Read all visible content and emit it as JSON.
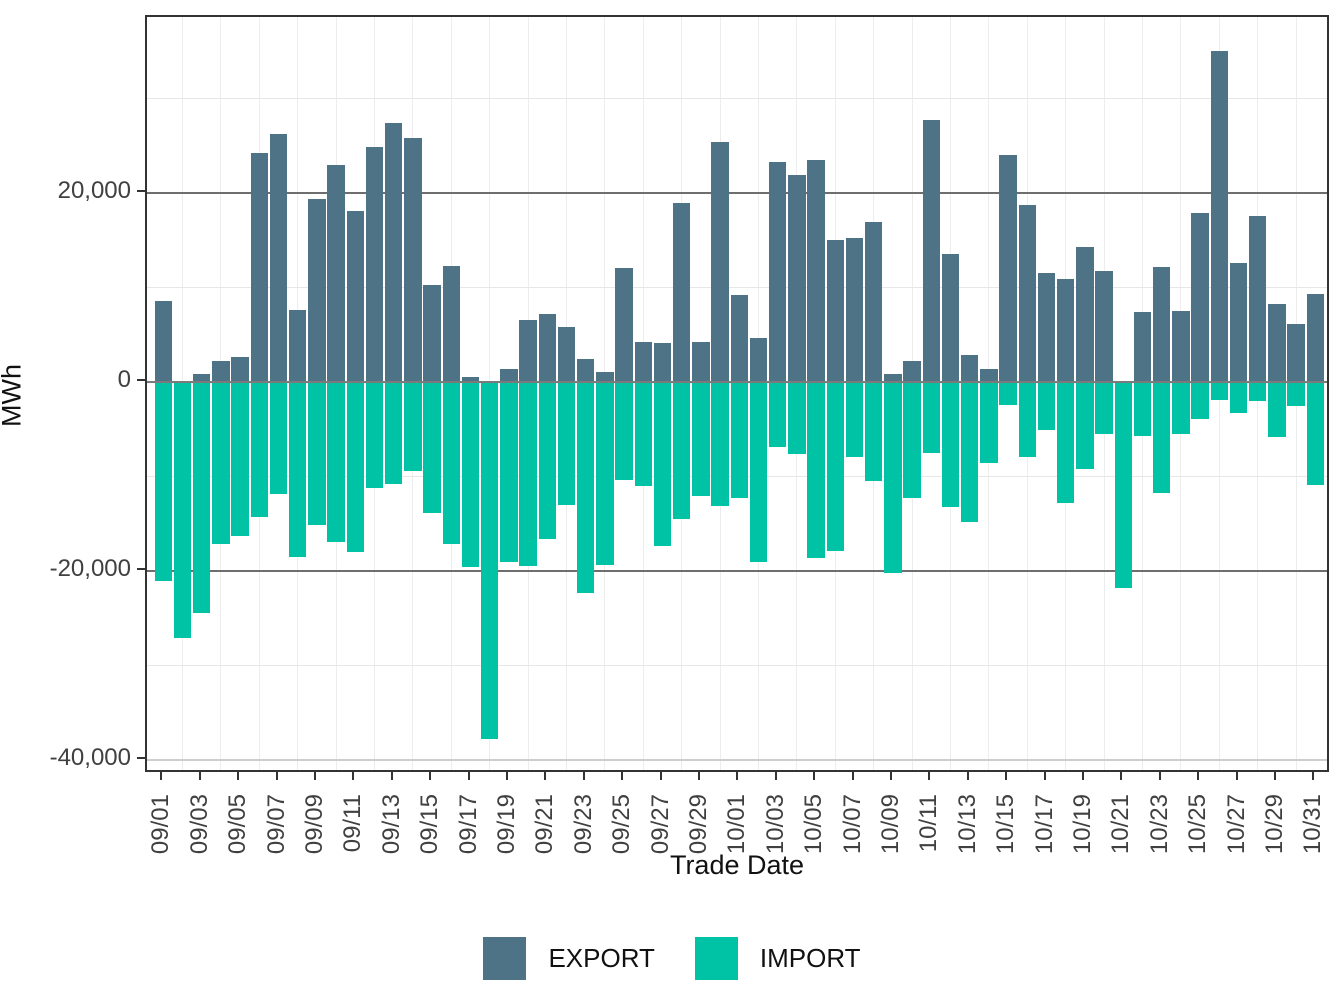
{
  "chart_data": {
    "type": "bar",
    "title": "",
    "xlabel": "Trade Date",
    "ylabel": "MWh",
    "ylim": [
      -41470,
      38620
    ],
    "y_ticks": [
      {
        "value": 20000,
        "label": "20,000",
        "style": "major"
      },
      {
        "value": 0,
        "label": "0",
        "style": "zero"
      },
      {
        "value": -20000,
        "label": "-20,000",
        "style": "major"
      },
      {
        "value": -40000,
        "label": "-40,000",
        "style": "weak"
      }
    ],
    "y_minor_ticks": [
      30000,
      10000,
      -10000,
      -30000
    ],
    "grid": "on",
    "legend_position": "bottom",
    "categories": [
      "09/01",
      "09/02",
      "09/03",
      "09/04",
      "09/05",
      "09/06",
      "09/07",
      "09/08",
      "09/09",
      "09/10",
      "09/11",
      "09/12",
      "09/13",
      "09/14",
      "09/15",
      "09/16",
      "09/17",
      "09/18",
      "09/19",
      "09/20",
      "09/21",
      "09/22",
      "09/23",
      "09/24",
      "09/25",
      "09/26",
      "09/27",
      "09/28",
      "09/29",
      "09/30",
      "10/01",
      "10/02",
      "10/03",
      "10/04",
      "10/05",
      "10/06",
      "10/07",
      "10/08",
      "10/09",
      "10/10",
      "10/11",
      "10/12",
      "10/13",
      "10/14",
      "10/15",
      "10/16",
      "10/17",
      "10/18",
      "10/19",
      "10/20",
      "10/21",
      "10/22",
      "10/23",
      "10/24",
      "10/25",
      "10/26",
      "10/27",
      "10/28",
      "10/29",
      "10/30",
      "10/31"
    ],
    "x_tick_labels": [
      "09/01",
      "09/03",
      "09/05",
      "09/07",
      "09/09",
      "09/11",
      "09/13",
      "09/15",
      "09/17",
      "09/19",
      "09/21",
      "09/23",
      "09/25",
      "09/27",
      "09/29",
      "10/01",
      "10/03",
      "10/05",
      "10/07",
      "10/09",
      "10/11",
      "10/13",
      "10/15",
      "10/17",
      "10/19",
      "10/21",
      "10/23",
      "10/25",
      "10/27",
      "10/29",
      "10/31"
    ],
    "series": [
      {
        "name": "EXPORT",
        "color": "#4F7386",
        "values": [
          8600,
          100,
          850,
          2250,
          2600,
          24200,
          26200,
          7650,
          19350,
          22950,
          18100,
          24850,
          27400,
          25800,
          10300,
          12250,
          500,
          100,
          1350,
          6600,
          7150,
          5850,
          2450,
          1050,
          12100,
          4250,
          4100,
          18900,
          4200,
          25400,
          9200,
          4650,
          23300,
          21900,
          23450,
          15000,
          15250,
          16950,
          800,
          2200,
          27750,
          13500,
          2850,
          1350,
          24050,
          18700,
          11550,
          10850,
          14300,
          11700,
          100,
          7400,
          12200,
          7500,
          17900,
          35000,
          12600,
          17550,
          8250,
          6150,
          9350
        ]
      },
      {
        "name": "IMPORT",
        "color": "#00C3A6",
        "values": [
          -21000,
          -27050,
          -24400,
          -17100,
          -16300,
          -14250,
          -11800,
          -18500,
          -15150,
          -16900,
          -17950,
          -11250,
          -10750,
          -9450,
          -13850,
          -17150,
          -19550,
          -37800,
          -19050,
          -19500,
          -16650,
          -13050,
          -22350,
          -19350,
          -10350,
          -11000,
          -17300,
          -14450,
          -12100,
          -13100,
          -12250,
          -19050,
          -6900,
          -7650,
          -18600,
          -17900,
          -7950,
          -10500,
          -20200,
          -12250,
          -7500,
          -13250,
          -14800,
          -8550,
          -2400,
          -7950,
          -5100,
          -12750,
          -9200,
          -5500,
          -21800,
          -5700,
          -11700,
          -5500,
          -3950,
          -1850,
          -3250,
          -2000,
          -5800,
          -2500,
          -10850
        ]
      }
    ]
  }
}
